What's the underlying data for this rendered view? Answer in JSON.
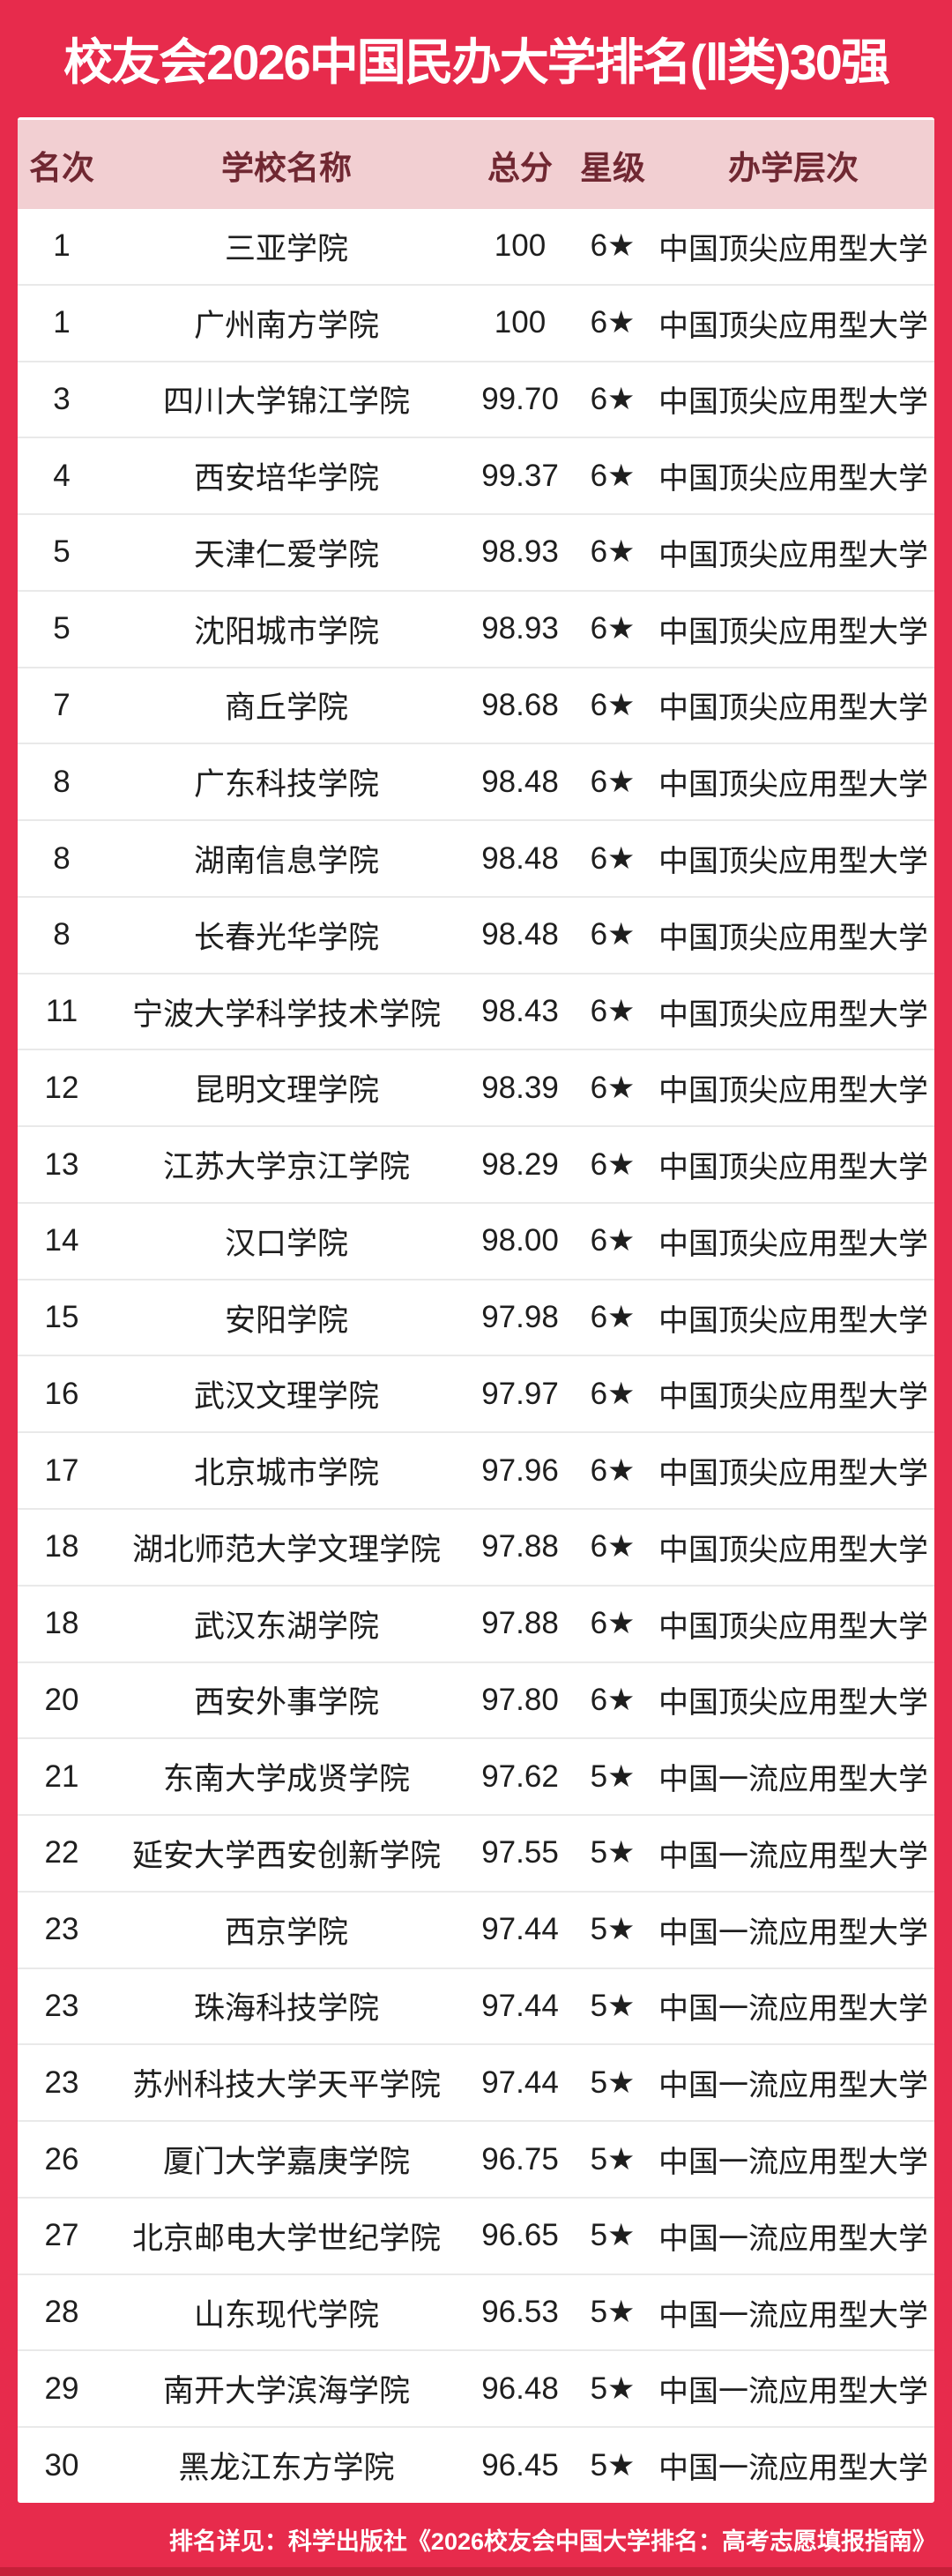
{
  "chart_data": {
    "type": "table",
    "title": "校友会2026中国民办大学排名(Ⅱ类)30强",
    "columns": [
      "名次",
      "学校名称",
      "总分",
      "星级",
      "办学层次"
    ],
    "rows": [
      {
        "rank": "1",
        "school": "三亚学院",
        "score": "100",
        "stars": "6★",
        "level": "中国顶尖应用型大学"
      },
      {
        "rank": "1",
        "school": "广州南方学院",
        "score": "100",
        "stars": "6★",
        "level": "中国顶尖应用型大学"
      },
      {
        "rank": "3",
        "school": "四川大学锦江学院",
        "score": "99.70",
        "stars": "6★",
        "level": "中国顶尖应用型大学"
      },
      {
        "rank": "4",
        "school": "西安培华学院",
        "score": "99.37",
        "stars": "6★",
        "level": "中国顶尖应用型大学"
      },
      {
        "rank": "5",
        "school": "天津仁爱学院",
        "score": "98.93",
        "stars": "6★",
        "level": "中国顶尖应用型大学"
      },
      {
        "rank": "5",
        "school": "沈阳城市学院",
        "score": "98.93",
        "stars": "6★",
        "level": "中国顶尖应用型大学"
      },
      {
        "rank": "7",
        "school": "商丘学院",
        "score": "98.68",
        "stars": "6★",
        "level": "中国顶尖应用型大学"
      },
      {
        "rank": "8",
        "school": "广东科技学院",
        "score": "98.48",
        "stars": "6★",
        "level": "中国顶尖应用型大学"
      },
      {
        "rank": "8",
        "school": "湖南信息学院",
        "score": "98.48",
        "stars": "6★",
        "level": "中国顶尖应用型大学"
      },
      {
        "rank": "8",
        "school": "长春光华学院",
        "score": "98.48",
        "stars": "6★",
        "level": "中国顶尖应用型大学"
      },
      {
        "rank": "11",
        "school": "宁波大学科学技术学院",
        "score": "98.43",
        "stars": "6★",
        "level": "中国顶尖应用型大学"
      },
      {
        "rank": "12",
        "school": "昆明文理学院",
        "score": "98.39",
        "stars": "6★",
        "level": "中国顶尖应用型大学"
      },
      {
        "rank": "13",
        "school": "江苏大学京江学院",
        "score": "98.29",
        "stars": "6★",
        "level": "中国顶尖应用型大学"
      },
      {
        "rank": "14",
        "school": "汉口学院",
        "score": "98.00",
        "stars": "6★",
        "level": "中国顶尖应用型大学"
      },
      {
        "rank": "15",
        "school": "安阳学院",
        "score": "97.98",
        "stars": "6★",
        "level": "中国顶尖应用型大学"
      },
      {
        "rank": "16",
        "school": "武汉文理学院",
        "score": "97.97",
        "stars": "6★",
        "level": "中国顶尖应用型大学"
      },
      {
        "rank": "17",
        "school": "北京城市学院",
        "score": "97.96",
        "stars": "6★",
        "level": "中国顶尖应用型大学"
      },
      {
        "rank": "18",
        "school": "湖北师范大学文理学院",
        "score": "97.88",
        "stars": "6★",
        "level": "中国顶尖应用型大学"
      },
      {
        "rank": "18",
        "school": "武汉东湖学院",
        "score": "97.88",
        "stars": "6★",
        "level": "中国顶尖应用型大学"
      },
      {
        "rank": "20",
        "school": "西安外事学院",
        "score": "97.80",
        "stars": "6★",
        "level": "中国顶尖应用型大学"
      },
      {
        "rank": "21",
        "school": "东南大学成贤学院",
        "score": "97.62",
        "stars": "5★",
        "level": "中国一流应用型大学"
      },
      {
        "rank": "22",
        "school": "延安大学西安创新学院",
        "score": "97.55",
        "stars": "5★",
        "level": "中国一流应用型大学"
      },
      {
        "rank": "23",
        "school": "西京学院",
        "score": "97.44",
        "stars": "5★",
        "level": "中国一流应用型大学"
      },
      {
        "rank": "23",
        "school": "珠海科技学院",
        "score": "97.44",
        "stars": "5★",
        "level": "中国一流应用型大学"
      },
      {
        "rank": "23",
        "school": "苏州科技大学天平学院",
        "score": "97.44",
        "stars": "5★",
        "level": "中国一流应用型大学"
      },
      {
        "rank": "26",
        "school": "厦门大学嘉庚学院",
        "score": "96.75",
        "stars": "5★",
        "level": "中国一流应用型大学"
      },
      {
        "rank": "27",
        "school": "北京邮电大学世纪学院",
        "score": "96.65",
        "stars": "5★",
        "level": "中国一流应用型大学"
      },
      {
        "rank": "28",
        "school": "山东现代学院",
        "score": "96.53",
        "stars": "5★",
        "level": "中国一流应用型大学"
      },
      {
        "rank": "29",
        "school": "南开大学滨海学院",
        "score": "96.48",
        "stars": "5★",
        "level": "中国一流应用型大学"
      },
      {
        "rank": "30",
        "school": "黑龙江东方学院",
        "score": "96.45",
        "stars": "5★",
        "level": "中国一流应用型大学"
      }
    ]
  },
  "footer": {
    "note": "排名详见：科学出版社《2026校友会中国大学排名：高考志愿填报指南》"
  },
  "colors": {
    "banner_red": "#E72B4C",
    "bottom_strip": "#C62039",
    "header_pink": "#F2CFD2",
    "header_text": "#702832",
    "body_text": "#1E1E1E",
    "separator": "#E9E9E9",
    "card_bg": "#FFFFFF",
    "title_text": "#FFFFFF"
  }
}
